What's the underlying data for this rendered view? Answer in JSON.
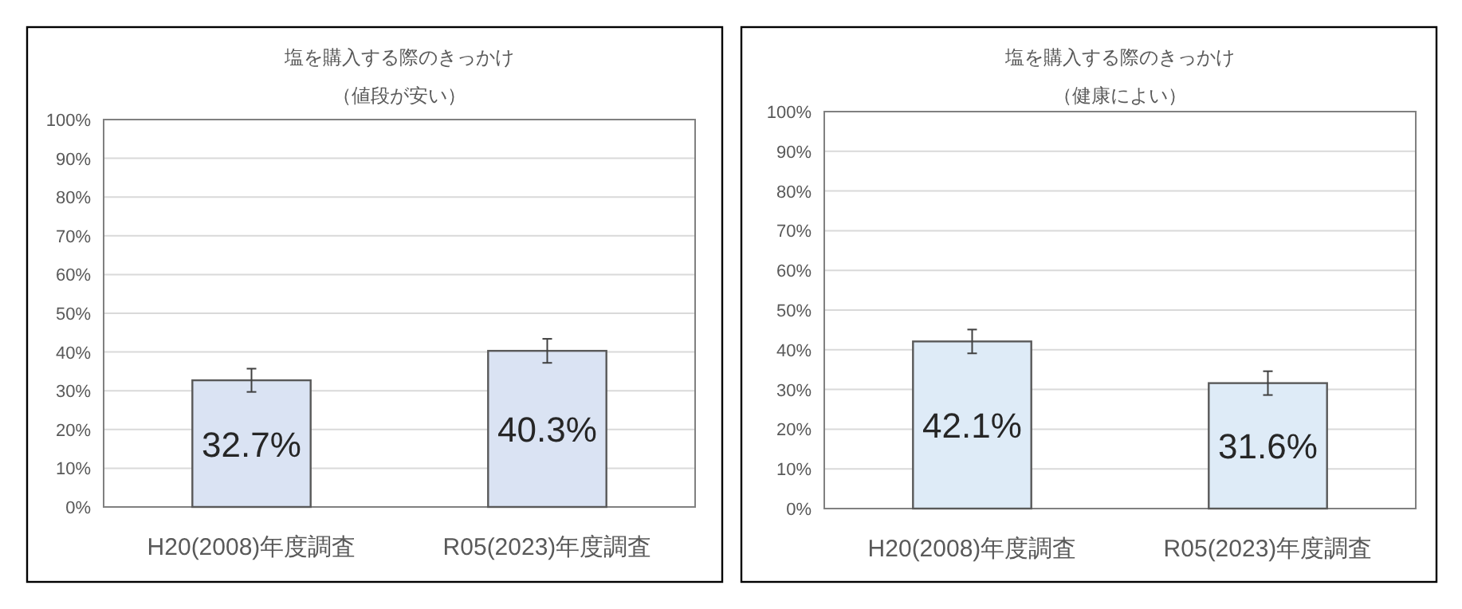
{
  "chart_data": [
    {
      "type": "bar",
      "title": "塩を購入する際のきっかけ",
      "subtitle": "（値段が安い）",
      "categories": [
        "H20(2008)年度調査",
        "R05(2023)年度調査"
      ],
      "values": [
        32.7,
        40.3
      ],
      "errors": [
        3.0,
        3.1
      ],
      "value_labels": [
        "32.7%",
        "40.3%"
      ],
      "color": "#dae3f3",
      "ylim": [
        0,
        100
      ],
      "yticks": [
        {
          "value": 0,
          "label": "0%"
        },
        {
          "value": 10,
          "label": "10%"
        },
        {
          "value": 20,
          "label": "20%"
        },
        {
          "value": 30,
          "label": "30%"
        },
        {
          "value": 40,
          "label": "40%"
        },
        {
          "value": 50,
          "label": "50%"
        },
        {
          "value": 60,
          "label": "60%"
        },
        {
          "value": 70,
          "label": "70%"
        },
        {
          "value": 80,
          "label": "80%"
        },
        {
          "value": 90,
          "label": "90%"
        },
        {
          "value": 100,
          "label": "100%"
        }
      ],
      "grid": "y"
    },
    {
      "type": "bar",
      "title": "塩を購入する際のきっかけ",
      "subtitle": "（健康によい）",
      "categories": [
        "H20(2008)年度調査",
        "R05(2023)年度調査"
      ],
      "values": [
        42.1,
        31.6
      ],
      "errors": [
        3.0,
        3.0
      ],
      "value_labels": [
        "42.1%",
        "31.6%"
      ],
      "color": "#deebf7",
      "ylim": [
        0,
        100
      ],
      "yticks": [
        {
          "value": 0,
          "label": "0%"
        },
        {
          "value": 10,
          "label": "10%"
        },
        {
          "value": 20,
          "label": "20%"
        },
        {
          "value": 30,
          "label": "30%"
        },
        {
          "value": 40,
          "label": "40%"
        },
        {
          "value": 50,
          "label": "50%"
        },
        {
          "value": 60,
          "label": "60%"
        },
        {
          "value": 70,
          "label": "70%"
        },
        {
          "value": 80,
          "label": "80%"
        },
        {
          "value": 90,
          "label": "90%"
        },
        {
          "value": 100,
          "label": "100%"
        }
      ],
      "grid": "y"
    }
  ]
}
